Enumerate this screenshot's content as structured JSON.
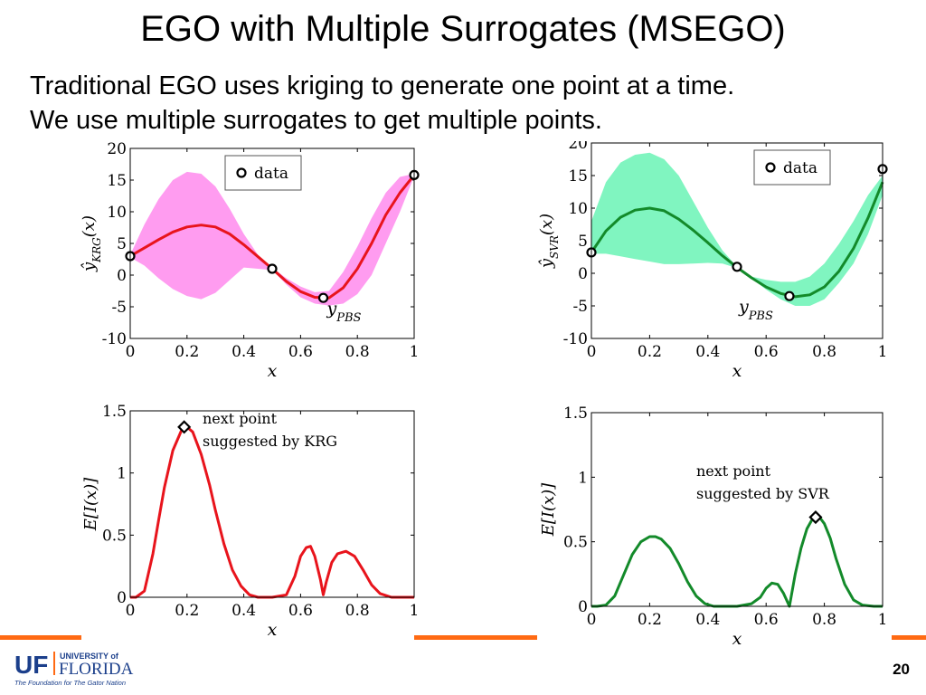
{
  "slide": {
    "title": "EGO with Multiple Surrogates (MSEGO)",
    "bullets": [
      "Traditional EGO uses kriging to generate one point at a time.",
      "We use multiple surrogates to get multiple points."
    ],
    "slide_number": "20",
    "logo": {
      "monogram": "UF",
      "university_of": "UNIVERSITY of",
      "florida": "FLORIDA",
      "tagline": "The Foundation for The Gator Nation"
    }
  },
  "colors": {
    "accent_orange": "#ff6a13",
    "logo_blue": "#1b3f8b",
    "krg_line": "#e8141c",
    "krg_band": "#ff9cf0",
    "svr_line": "#138a2a",
    "svr_band": "#80f5c0"
  },
  "chart_data": [
    {
      "id": "krg_fit",
      "type": "line",
      "xlabel": "x",
      "ylabel": "ŷ_KRG(x)",
      "xlim": [
        0,
        1
      ],
      "ylim": [
        -10,
        20
      ],
      "xticks": [
        "0",
        "0.2",
        "0.4",
        "0.6",
        "0.8",
        "1"
      ],
      "yticks": [
        "-10",
        "-5",
        "0",
        "5",
        "10",
        "15",
        "20"
      ],
      "legend": "data",
      "legend_position": "top-center",
      "annotation": "y_PBS",
      "prediction": {
        "x": [
          0,
          0.05,
          0.1,
          0.15,
          0.2,
          0.25,
          0.3,
          0.35,
          0.4,
          0.45,
          0.5,
          0.55,
          0.6,
          0.65,
          0.7,
          0.75,
          0.8,
          0.85,
          0.9,
          0.95,
          1.0
        ],
        "y": [
          3.0,
          4.3,
          5.6,
          6.8,
          7.6,
          7.9,
          7.6,
          6.5,
          4.8,
          2.9,
          1.0,
          -1.0,
          -2.6,
          -3.5,
          -3.6,
          -2.0,
          1.0,
          5.0,
          9.5,
          13.0,
          15.8
        ]
      },
      "band_upper": [
        3.2,
        8.0,
        12.0,
        15.0,
        16.3,
        16.0,
        14.0,
        10.5,
        6.5,
        3.2,
        1.2,
        -0.5,
        -1.8,
        -2.7,
        -2.5,
        0.5,
        4.5,
        9.0,
        13.0,
        15.5,
        16.0
      ],
      "band_lower": [
        2.8,
        1.5,
        -0.5,
        -2.2,
        -3.3,
        -3.8,
        -2.8,
        -0.8,
        1.2,
        1.0,
        0.8,
        -1.5,
        -3.5,
        -4.5,
        -4.8,
        -4.5,
        -3.0,
        0.0,
        5.0,
        10.0,
        15.6
      ],
      "data_points": [
        {
          "x": 0,
          "y": 3.0
        },
        {
          "x": 0.5,
          "y": 1.0
        },
        {
          "x": 0.68,
          "y": -3.6
        },
        {
          "x": 1.0,
          "y": 15.8
        }
      ]
    },
    {
      "id": "svr_fit",
      "type": "line",
      "xlabel": "x",
      "ylabel": "ŷ_SVR(x)",
      "xlim": [
        0,
        1
      ],
      "ylim": [
        -10,
        20
      ],
      "xticks": [
        "0",
        "0.2",
        "0.4",
        "0.6",
        "0.8",
        "1"
      ],
      "yticks": [
        "-10",
        "-5",
        "0",
        "5",
        "10",
        "15",
        "20"
      ],
      "legend": "data",
      "legend_position": "top-right",
      "annotation": "y_PBS",
      "prediction": {
        "x": [
          0,
          0.05,
          0.1,
          0.15,
          0.2,
          0.25,
          0.3,
          0.35,
          0.4,
          0.45,
          0.5,
          0.55,
          0.6,
          0.65,
          0.7,
          0.75,
          0.8,
          0.85,
          0.9,
          0.95,
          1.0
        ],
        "y": [
          3.2,
          6.5,
          8.6,
          9.7,
          10.0,
          9.6,
          8.3,
          6.6,
          4.7,
          2.7,
          0.9,
          -0.7,
          -2.1,
          -3.1,
          -3.6,
          -3.3,
          -2.1,
          0.3,
          3.8,
          8.5,
          14.0
        ]
      },
      "band_upper": [
        8.0,
        14.0,
        17.0,
        18.2,
        18.5,
        17.5,
        15.0,
        11.0,
        7.0,
        3.5,
        1.0,
        -0.5,
        -1.0,
        -1.3,
        -1.3,
        -0.5,
        1.5,
        4.5,
        8.0,
        12.0,
        15.0
      ],
      "band_lower": [
        3.0,
        3.0,
        2.6,
        2.2,
        1.8,
        1.4,
        1.4,
        1.5,
        1.6,
        1.5,
        0.8,
        -0.8,
        -2.5,
        -4.0,
        -5.0,
        -5.0,
        -4.0,
        -1.5,
        1.5,
        6.0,
        12.0
      ],
      "data_points": [
        {
          "x": 0,
          "y": 3.2
        },
        {
          "x": 0.5,
          "y": 1.0
        },
        {
          "x": 0.68,
          "y": -3.5
        },
        {
          "x": 1.0,
          "y": 16.0
        }
      ]
    },
    {
      "id": "krg_ei",
      "type": "line",
      "xlabel": "x",
      "ylabel": "E[I(x)]",
      "xlim": [
        0,
        1
      ],
      "ylim": [
        0,
        1.5
      ],
      "xticks": [
        "0",
        "0.2",
        "0.4",
        "0.6",
        "0.8",
        "1"
      ],
      "yticks": [
        "0",
        "0.5",
        "1",
        "1.5"
      ],
      "annotation": [
        "next point",
        "suggested by KRG"
      ],
      "curve": {
        "x": [
          0,
          0.02,
          0.05,
          0.08,
          0.1,
          0.12,
          0.15,
          0.18,
          0.2,
          0.22,
          0.25,
          0.28,
          0.3,
          0.33,
          0.36,
          0.39,
          0.42,
          0.45,
          0.5,
          0.55,
          0.58,
          0.6,
          0.62,
          0.635,
          0.65,
          0.67,
          0.68,
          0.69,
          0.71,
          0.73,
          0.76,
          0.79,
          0.82,
          0.85,
          0.88,
          0.92,
          0.96,
          1.0
        ],
        "y": [
          0,
          0,
          0.05,
          0.35,
          0.62,
          0.88,
          1.18,
          1.34,
          1.37,
          1.33,
          1.15,
          0.9,
          0.7,
          0.43,
          0.22,
          0.09,
          0.02,
          0,
          0,
          0.02,
          0.17,
          0.33,
          0.4,
          0.41,
          0.33,
          0.14,
          0.02,
          0.12,
          0.28,
          0.35,
          0.37,
          0.33,
          0.22,
          0.1,
          0.03,
          0,
          0,
          0
        ]
      },
      "suggested_point": {
        "x": 0.19,
        "y": 1.37
      }
    },
    {
      "id": "svr_ei",
      "type": "line",
      "xlabel": "x",
      "ylabel": "E[I(x)]",
      "xlim": [
        0,
        1
      ],
      "ylim": [
        0,
        1.5
      ],
      "xticks": [
        "0",
        "0.2",
        "0.4",
        "0.6",
        "0.8",
        "1"
      ],
      "yticks": [
        "0",
        "0.5",
        "1",
        "1.5"
      ],
      "annotation": [
        "next point",
        "suggested by SVR"
      ],
      "curve": {
        "x": [
          0,
          0.02,
          0.05,
          0.08,
          0.11,
          0.14,
          0.17,
          0.2,
          0.22,
          0.24,
          0.27,
          0.3,
          0.33,
          0.36,
          0.39,
          0.42,
          0.45,
          0.5,
          0.55,
          0.58,
          0.6,
          0.62,
          0.64,
          0.66,
          0.68,
          0.7,
          0.72,
          0.74,
          0.76,
          0.78,
          0.8,
          0.82,
          0.84,
          0.87,
          0.9,
          0.93,
          0.97,
          1.0
        ],
        "y": [
          0,
          0,
          0.01,
          0.08,
          0.24,
          0.4,
          0.5,
          0.54,
          0.54,
          0.52,
          0.45,
          0.33,
          0.19,
          0.08,
          0.02,
          0,
          0,
          0,
          0.02,
          0.07,
          0.14,
          0.18,
          0.17,
          0.1,
          0,
          0.25,
          0.45,
          0.6,
          0.68,
          0.7,
          0.64,
          0.53,
          0.37,
          0.17,
          0.05,
          0.01,
          0,
          0
        ]
      },
      "suggested_point": {
        "x": 0.77,
        "y": 0.69
      }
    }
  ]
}
